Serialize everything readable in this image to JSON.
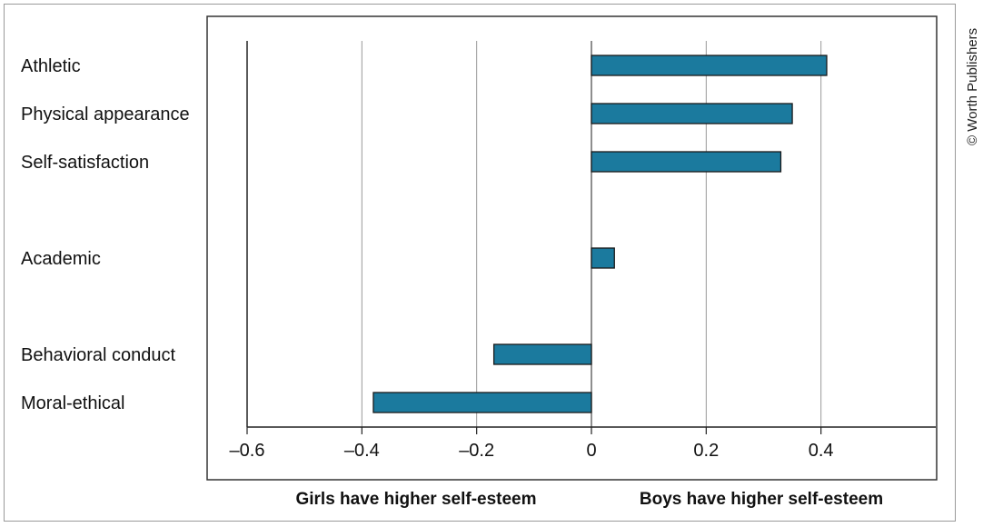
{
  "credit": "© Worth Publishers",
  "chart_data": {
    "type": "bar",
    "orientation": "horizontal",
    "categories": [
      "Athletic",
      "Physical appearance",
      "Self-satisfaction",
      "Academic",
      "Behavioral conduct",
      "Moral-ethical"
    ],
    "values": [
      0.41,
      0.35,
      0.33,
      0.04,
      -0.17,
      -0.38
    ],
    "xlim": [
      -0.6,
      0.6
    ],
    "xticks": [
      -0.6,
      -0.4,
      -0.2,
      0,
      0.2,
      0.4
    ],
    "xtick_labels": [
      "–0.6",
      "–0.4",
      "–0.2",
      "0",
      "0.2",
      "0.4"
    ],
    "grid": true,
    "bar_color": "#1b7a9e",
    "bar_edge_color": "#1a1a1a",
    "annotations": {
      "left": "Girls have higher self-esteem",
      "right": "Boys have higher self-esteem"
    }
  }
}
